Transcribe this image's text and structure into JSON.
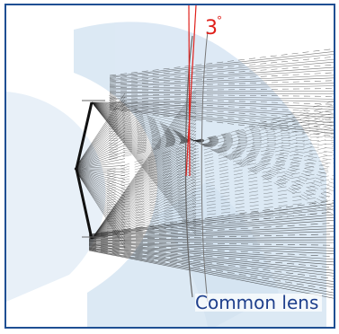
{
  "diagram": {
    "angle_label": "3",
    "degree_symbol": "°",
    "caption": "Common lens",
    "colors": {
      "border": "#1f4f93",
      "rays": "#222222",
      "watermark": "#dbe8f4",
      "angle": "#e0201b",
      "caption": "#1e3f8c"
    }
  }
}
